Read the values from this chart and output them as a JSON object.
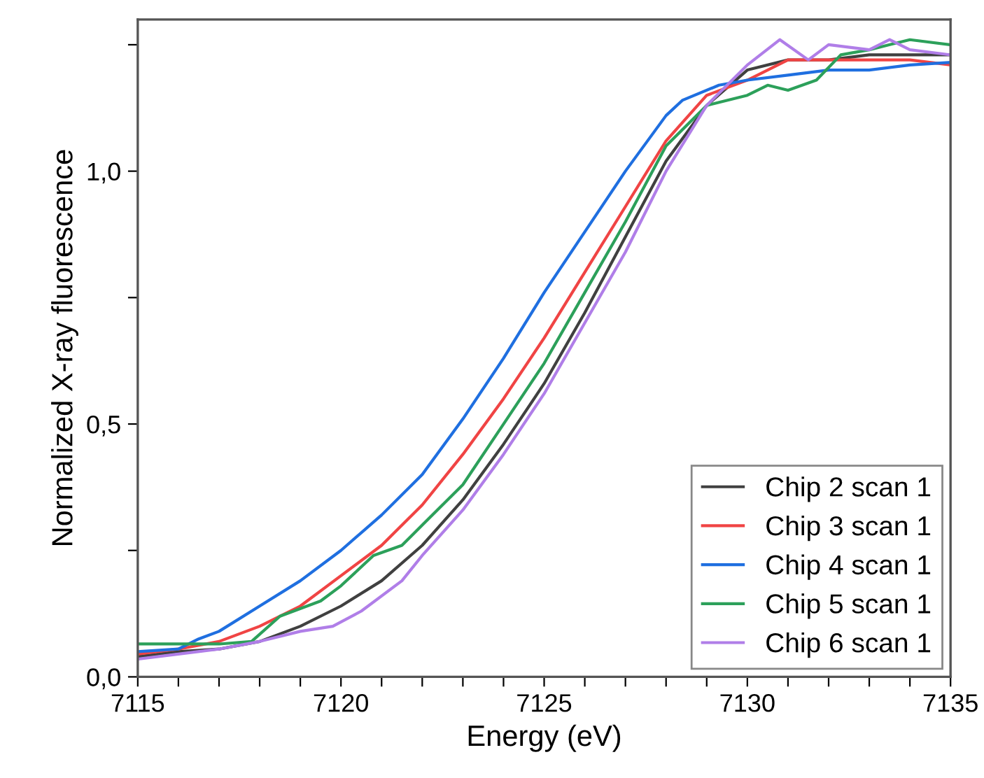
{
  "chart_data": {
    "type": "line",
    "xlabel": "Energy (eV)",
    "ylabel": "Normalized X-ray fluorescence",
    "xlim": [
      7115,
      7135
    ],
    "ylim": [
      0,
      1.3
    ],
    "xticks": [
      7115,
      {
        "value": 7116,
        "label": null
      },
      {
        "value": 7117,
        "label": null
      },
      {
        "value": 7118,
        "label": null
      },
      {
        "value": 7119,
        "label": null
      },
      7120,
      {
        "value": 7121,
        "label": null
      },
      {
        "value": 7122,
        "label": null
      },
      {
        "value": 7123,
        "label": null
      },
      {
        "value": 7124,
        "label": null
      },
      7125,
      {
        "value": 7126,
        "label": null
      },
      {
        "value": 7127,
        "label": null
      },
      {
        "value": 7128,
        "label": null
      },
      {
        "value": 7129,
        "label": null
      },
      7130,
      {
        "value": 7131,
        "label": null
      },
      {
        "value": 7132,
        "label": null
      },
      {
        "value": 7133,
        "label": null
      },
      {
        "value": 7134,
        "label": null
      },
      7135
    ],
    "yticks": [
      {
        "value": 0,
        "label": "0,0"
      },
      {
        "value": 0.25,
        "label": null
      },
      {
        "value": 0.5,
        "label": "0,5"
      },
      {
        "value": 0.75,
        "label": null
      },
      {
        "value": 1.0,
        "label": "1,0"
      },
      {
        "value": 1.25,
        "label": null
      }
    ],
    "grid": false,
    "legend": "bottom right",
    "marker": "none",
    "line_style": "solid",
    "series": [
      {
        "name": "Chip 2 scan 1",
        "color": "#404040",
        "x": [
          7115,
          7116,
          7117,
          7118,
          7119,
          7120,
          7121,
          7122,
          7123,
          7124,
          7125,
          7126,
          7127,
          7128,
          7129,
          7130,
          7131,
          7132,
          7133,
          7134,
          7135
        ],
        "values": [
          0.04,
          0.05,
          0.055,
          0.07,
          0.1,
          0.14,
          0.19,
          0.26,
          0.35,
          0.46,
          0.58,
          0.72,
          0.87,
          1.02,
          1.13,
          1.2,
          1.22,
          1.22,
          1.23,
          1.23,
          1.23
        ]
      },
      {
        "name": "Chip 3 scan 1",
        "color": "#f04444",
        "x": [
          7115,
          7116,
          7117,
          7118,
          7119,
          7120,
          7121,
          7122,
          7123,
          7124,
          7125,
          7126,
          7127,
          7128,
          7129,
          7130,
          7131,
          7132,
          7133,
          7134,
          7135
        ],
        "values": [
          0.045,
          0.055,
          0.07,
          0.1,
          0.14,
          0.2,
          0.26,
          0.34,
          0.44,
          0.55,
          0.67,
          0.8,
          0.93,
          1.06,
          1.15,
          1.18,
          1.22,
          1.22,
          1.22,
          1.22,
          1.21
        ]
      },
      {
        "name": "Chip 4 scan 1",
        "color": "#1f6fe0",
        "x": [
          7115,
          7116,
          7116.5,
          7117,
          7118,
          7119,
          7120,
          7121,
          7122,
          7123,
          7124,
          7125,
          7126,
          7127,
          7128,
          7128.4,
          7129.3,
          7130,
          7131,
          7132,
          7133,
          7134,
          7135
        ],
        "values": [
          0.05,
          0.055,
          0.075,
          0.09,
          0.14,
          0.19,
          0.25,
          0.32,
          0.4,
          0.51,
          0.63,
          0.76,
          0.88,
          1.0,
          1.11,
          1.14,
          1.17,
          1.18,
          1.19,
          1.2,
          1.2,
          1.21,
          1.215
        ]
      },
      {
        "name": "Chip 5 scan 1",
        "color": "#2ca05a",
        "x": [
          7115,
          7116,
          7117,
          7117.8,
          7118.5,
          7119.5,
          7120,
          7120.8,
          7121.5,
          7122,
          7123,
          7124,
          7125,
          7126,
          7127,
          7128,
          7129,
          7130,
          7130.5,
          7131,
          7131.7,
          7132.3,
          7133,
          7134,
          7135
        ],
        "values": [
          0.065,
          0.065,
          0.065,
          0.07,
          0.12,
          0.15,
          0.18,
          0.24,
          0.26,
          0.3,
          0.38,
          0.5,
          0.62,
          0.76,
          0.9,
          1.05,
          1.13,
          1.15,
          1.17,
          1.16,
          1.18,
          1.23,
          1.24,
          1.26,
          1.25
        ]
      },
      {
        "name": "Chip 6 scan 1",
        "color": "#b07ee8",
        "x": [
          7115,
          7116,
          7117,
          7118,
          7119,
          7119.8,
          7120.5,
          7121.5,
          7122,
          7123,
          7124,
          7125,
          7126,
          7127,
          7128,
          7129,
          7130,
          7130.8,
          7131.5,
          7132,
          7133,
          7133.5,
          7134,
          7135
        ],
        "values": [
          0.035,
          0.045,
          0.055,
          0.07,
          0.09,
          0.1,
          0.13,
          0.19,
          0.24,
          0.33,
          0.44,
          0.56,
          0.7,
          0.84,
          1.0,
          1.13,
          1.21,
          1.26,
          1.22,
          1.25,
          1.24,
          1.26,
          1.24,
          1.23
        ]
      }
    ]
  }
}
